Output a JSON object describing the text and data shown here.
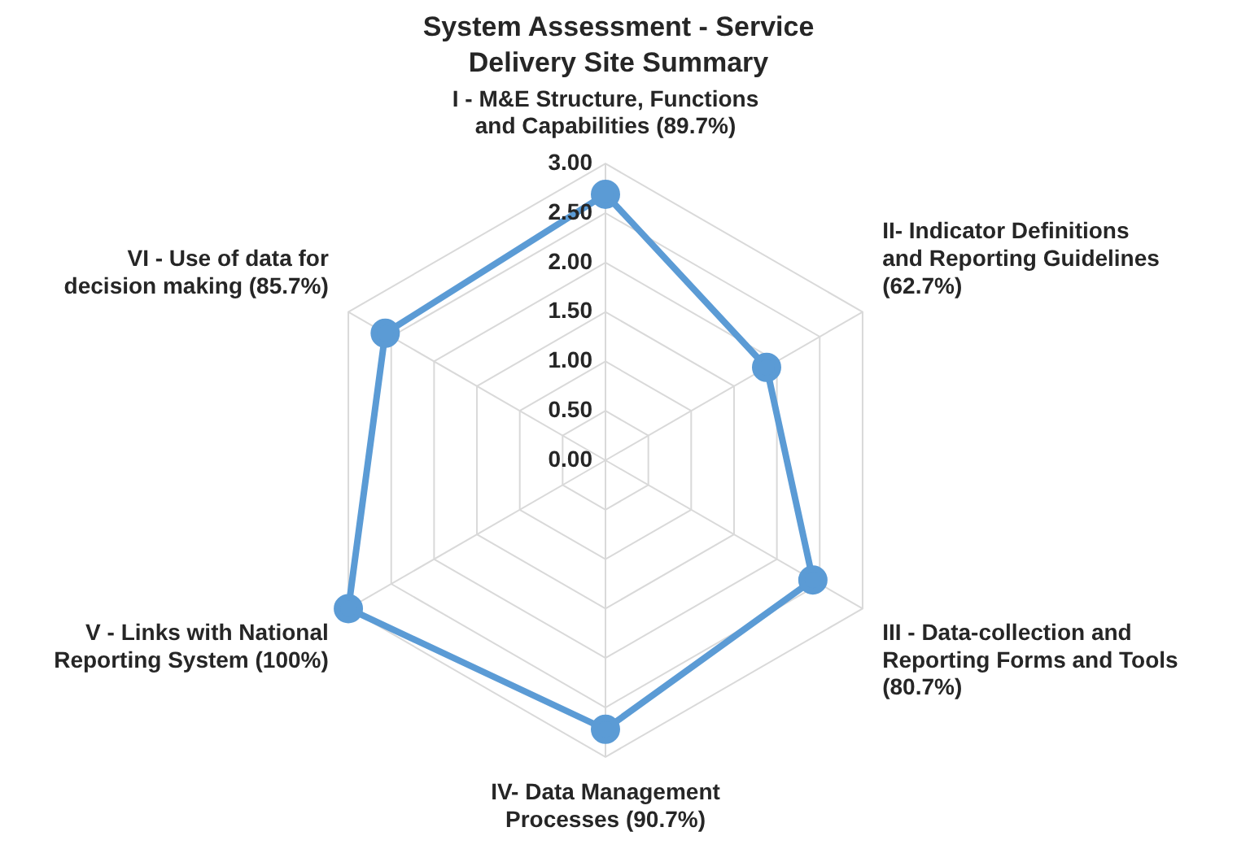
{
  "chart_data": {
    "type": "radar",
    "title": "System Assessment - Service Delivery Site Summary",
    "categories": [
      "I - M&E Structure, Functions and Capabilities (89.7%)",
      "II- Indicator Definitions and Reporting Guidelines (62.7%)",
      "III - Data-collection and Reporting Forms and Tools (80.7%)",
      "IV- Data Management Processes (90.7%)",
      "V - Links with National Reporting System (100%)",
      "VI - Use of data for decision making (85.7%)"
    ],
    "series": [
      {
        "color": "#5b9bd5",
        "values": [
          2.69,
          1.88,
          2.42,
          2.72,
          3.0,
          2.57
        ]
      }
    ],
    "ylim": [
      0,
      3
    ],
    "yticks": [
      {
        "value": 0,
        "label": "0.00"
      },
      {
        "value": 0.5,
        "label": "0.50"
      },
      {
        "value": 1,
        "label": "1.00"
      },
      {
        "value": 1.5,
        "label": "1.50"
      },
      {
        "value": 2,
        "label": "2.00"
      },
      {
        "value": 2.5,
        "label": "2.50"
      },
      {
        "value": 3,
        "label": "3.00"
      }
    ],
    "grid": true,
    "legend": false,
    "marker": "circle",
    "line_style": "solid"
  }
}
